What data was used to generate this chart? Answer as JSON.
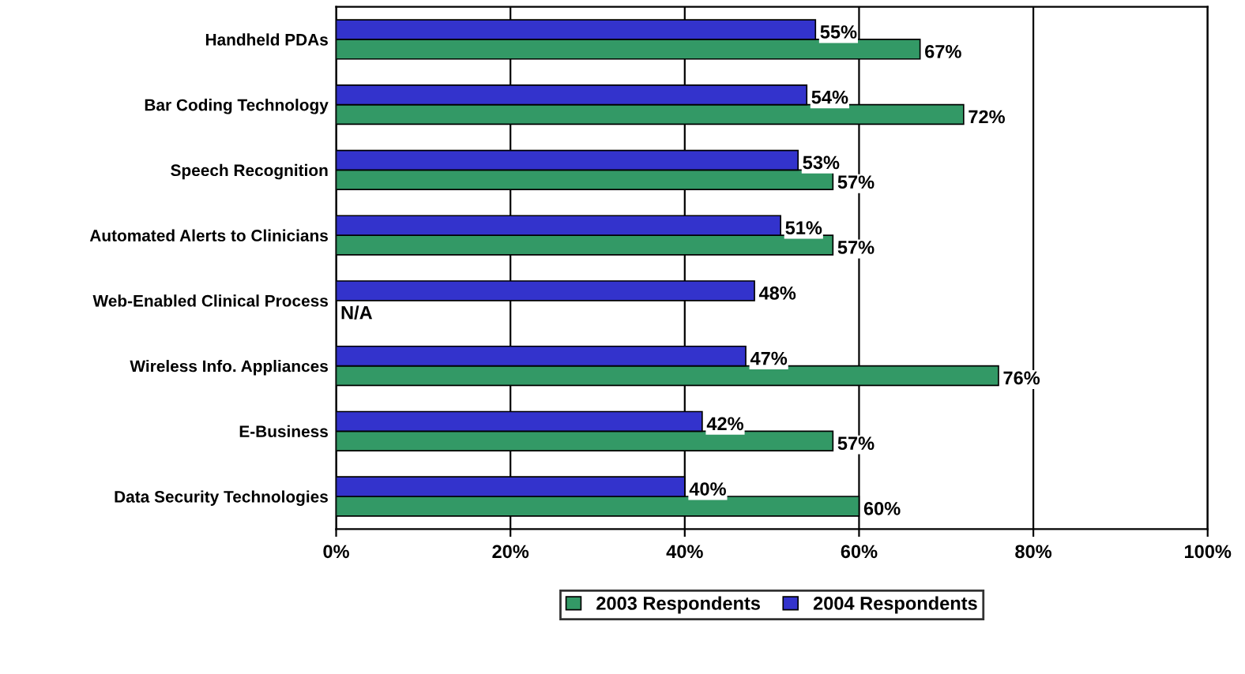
{
  "chart_data": {
    "type": "bar",
    "orientation": "horizontal",
    "categories": [
      "Handheld PDAs",
      "Bar Coding Technology",
      "Speech Recognition",
      "Automated Alerts to Clinicians",
      "Web-Enabled Clinical Process",
      "Wireless Info. Appliances",
      "E-Business",
      "Data Security Technologies"
    ],
    "series": [
      {
        "name": "2003 Respondents",
        "color": "#339966",
        "values": [
          67,
          72,
          57,
          57,
          null,
          76,
          57,
          60
        ],
        "value_labels": [
          "67%",
          "72%",
          "57%",
          "57%",
          "N/A",
          "76%",
          "57%",
          "60%"
        ]
      },
      {
        "name": "2004 Respondents",
        "color": "#3333cc",
        "values": [
          55,
          54,
          53,
          51,
          48,
          47,
          42,
          40
        ],
        "value_labels": [
          "55%",
          "54%",
          "53%",
          "51%",
          "48%",
          "47%",
          "42%",
          "40%"
        ]
      }
    ],
    "xlim": [
      0,
      100
    ],
    "xticks": [
      {
        "value": 0,
        "label": "0%"
      },
      {
        "value": 20,
        "label": "20%"
      },
      {
        "value": 40,
        "label": "40%"
      },
      {
        "value": 60,
        "label": "60%"
      },
      {
        "value": 80,
        "label": "80%"
      },
      {
        "value": 100,
        "label": "100%"
      }
    ],
    "grid": "x",
    "legend": "bottom"
  }
}
